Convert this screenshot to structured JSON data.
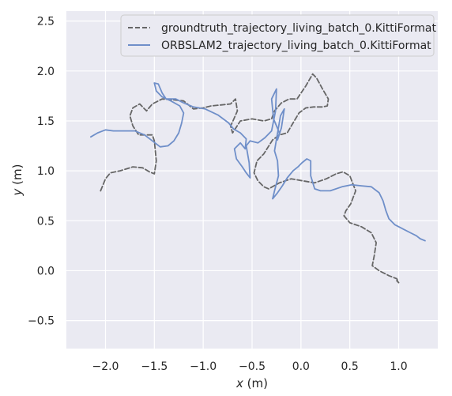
{
  "chart_data": {
    "type": "line",
    "xlabel": "x (m)",
    "ylabel": "y (m)",
    "xlim": [
      -2.4,
      1.4
    ],
    "ylim": [
      -0.78,
      2.6
    ],
    "xticks": [
      -2.0,
      -1.5,
      -1.0,
      -0.5,
      0.0,
      0.5,
      1.0
    ],
    "xtick_labels": [
      "−2.0",
      "−1.5",
      "−1.0",
      "−0.5",
      "0.0",
      "0.5",
      "1.0"
    ],
    "yticks": [
      -0.5,
      0.0,
      0.5,
      1.0,
      1.5,
      2.0,
      2.5
    ],
    "ytick_labels": [
      "−0.5",
      "0.0",
      "0.5",
      "1.0",
      "1.5",
      "2.0",
      "2.5"
    ],
    "grid": true,
    "legend_position": "top-right",
    "series": [
      {
        "name": "groundtruth_trajectory_living_batch_0.KittiFormat",
        "color": "#666666",
        "style": "dashed",
        "x": [
          -2.05,
          -2.0,
          -1.95,
          -1.85,
          -1.72,
          -1.62,
          -1.55,
          -1.5,
          -1.48,
          -1.5,
          -1.52,
          -1.58,
          -1.66,
          -1.72,
          -1.75,
          -1.72,
          -1.65,
          -1.58,
          -1.52,
          -1.42,
          -1.3,
          -1.2,
          -1.1,
          -1.0,
          -0.92,
          -0.82,
          -0.72,
          -0.67,
          -0.65,
          -0.7,
          -0.72,
          -0.7,
          -0.62,
          -0.5,
          -0.38,
          -0.3,
          -0.27,
          -0.2,
          -0.12,
          -0.04,
          0.05,
          0.12,
          0.16,
          0.22,
          0.28,
          0.27,
          0.22,
          0.13,
          0.05,
          -0.02,
          -0.08,
          -0.14,
          -0.22,
          -0.29,
          -0.38,
          -0.45,
          -0.48,
          -0.44,
          -0.38,
          -0.33,
          -0.22,
          -0.1,
          0.02,
          0.14,
          0.26,
          0.36,
          0.43,
          0.5,
          0.56,
          0.51,
          0.46,
          0.44,
          0.5,
          0.62,
          0.72,
          0.77,
          0.75,
          0.73,
          0.8,
          0.9,
          0.98,
          1.0,
          0.98
        ],
        "y": [
          0.8,
          0.92,
          0.98,
          1.0,
          1.04,
          1.03,
          0.99,
          0.97,
          1.1,
          1.3,
          1.36,
          1.36,
          1.36,
          1.45,
          1.55,
          1.63,
          1.67,
          1.6,
          1.67,
          1.72,
          1.71,
          1.7,
          1.62,
          1.63,
          1.65,
          1.66,
          1.67,
          1.72,
          1.6,
          1.49,
          1.45,
          1.38,
          1.5,
          1.52,
          1.5,
          1.52,
          1.6,
          1.68,
          1.72,
          1.72,
          1.85,
          1.97,
          1.93,
          1.82,
          1.72,
          1.65,
          1.64,
          1.64,
          1.63,
          1.58,
          1.48,
          1.38,
          1.36,
          1.31,
          1.17,
          1.1,
          0.98,
          0.9,
          0.84,
          0.82,
          0.88,
          0.92,
          0.9,
          0.88,
          0.92,
          0.97,
          0.99,
          0.95,
          0.8,
          0.67,
          0.6,
          0.55,
          0.48,
          0.44,
          0.38,
          0.28,
          0.15,
          0.05,
          0.0,
          -0.05,
          -0.08,
          -0.12,
          -0.1
        ]
      },
      {
        "name": "ORBSLAM2_trajectory_living_batch_0.KittiFormat",
        "color": "#6f8fc9",
        "style": "solid",
        "x": [
          -2.15,
          -2.08,
          -2.0,
          -1.92,
          -1.82,
          -1.7,
          -1.6,
          -1.52,
          -1.44,
          -1.36,
          -1.3,
          -1.25,
          -1.22,
          -1.2,
          -1.24,
          -1.33,
          -1.42,
          -1.48,
          -1.5,
          -1.46,
          -1.42,
          -1.38,
          -1.28,
          -1.2,
          -1.1,
          -0.98,
          -0.85,
          -0.74,
          -0.69,
          -0.62,
          -0.56,
          -0.57,
          -0.62,
          -0.68,
          -0.66,
          -0.6,
          -0.56,
          -0.52,
          -0.53,
          -0.56,
          -0.52,
          -0.44,
          -0.37,
          -0.3,
          -0.26,
          -0.25,
          -0.3,
          -0.28,
          -0.22,
          -0.24,
          -0.2,
          -0.17,
          -0.21,
          -0.27,
          -0.24,
          -0.23,
          -0.27,
          -0.29,
          -0.24,
          -0.19,
          -0.14,
          -0.08,
          -0.03,
          0.01,
          0.06,
          0.1,
          0.1,
          0.14,
          0.2,
          0.3,
          0.42,
          0.52,
          0.62,
          0.72,
          0.8,
          0.84,
          0.87,
          0.9,
          0.96,
          1.04,
          1.12,
          1.18,
          1.22,
          1.27
        ],
        "y": [
          1.34,
          1.38,
          1.41,
          1.4,
          1.4,
          1.4,
          1.36,
          1.3,
          1.24,
          1.25,
          1.3,
          1.38,
          1.48,
          1.58,
          1.65,
          1.7,
          1.74,
          1.8,
          1.88,
          1.87,
          1.78,
          1.72,
          1.72,
          1.68,
          1.64,
          1.62,
          1.56,
          1.48,
          1.42,
          1.38,
          1.32,
          1.22,
          1.28,
          1.22,
          1.12,
          1.04,
          0.98,
          0.93,
          1.08,
          1.25,
          1.3,
          1.28,
          1.33,
          1.4,
          1.6,
          1.82,
          1.72,
          1.52,
          1.38,
          1.31,
          1.43,
          1.62,
          1.55,
          1.2,
          1.1,
          0.95,
          0.8,
          0.72,
          0.78,
          0.85,
          0.93,
          1.0,
          1.04,
          1.08,
          1.12,
          1.1,
          0.95,
          0.82,
          0.8,
          0.8,
          0.84,
          0.86,
          0.85,
          0.84,
          0.78,
          0.7,
          0.6,
          0.52,
          0.46,
          0.42,
          0.38,
          0.35,
          0.32,
          0.3
        ]
      }
    ]
  }
}
